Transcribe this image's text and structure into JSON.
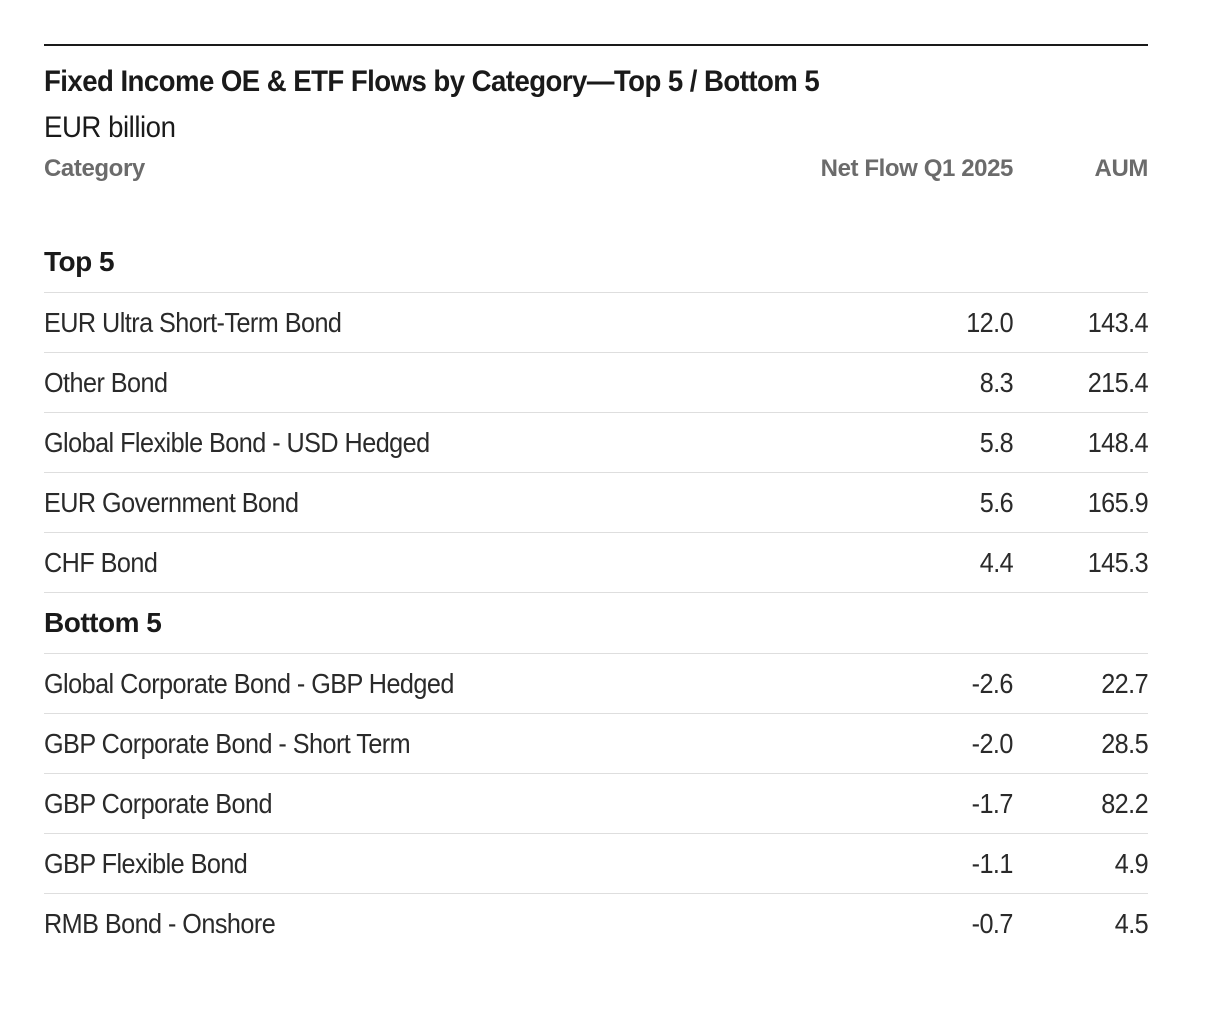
{
  "chart_data": {
    "type": "table",
    "title": "Fixed Income OE & ETF Flows by Category—Top 5 / Bottom 5",
    "subtitle": "EUR billion",
    "columns": [
      "Category",
      "Net Flow Q1 2025",
      "AUM"
    ],
    "groups": [
      {
        "name": "Top 5",
        "rows": [
          {
            "category": "EUR Ultra Short-Term Bond",
            "net_flow": "12.0",
            "aum": "143.4"
          },
          {
            "category": "Other Bond",
            "net_flow": "8.3",
            "aum": "215.4"
          },
          {
            "category": "Global Flexible Bond - USD Hedged",
            "net_flow": "5.8",
            "aum": "148.4"
          },
          {
            "category": "EUR Government Bond",
            "net_flow": "5.6",
            "aum": "165.9"
          },
          {
            "category": "CHF Bond",
            "net_flow": "4.4",
            "aum": "145.3"
          }
        ]
      },
      {
        "name": "Bottom 5",
        "rows": [
          {
            "category": "Global Corporate Bond - GBP Hedged",
            "net_flow": "-2.6",
            "aum": "22.7"
          },
          {
            "category": "GBP Corporate Bond - Short Term",
            "net_flow": "-2.0",
            "aum": "28.5"
          },
          {
            "category": "GBP Corporate Bond",
            "net_flow": "-1.7",
            "aum": "82.2"
          },
          {
            "category": "GBP Flexible Bond",
            "net_flow": "-1.1",
            "aum": "4.9"
          },
          {
            "category": "RMB Bond - Onshore",
            "net_flow": "-0.7",
            "aum": "4.5"
          }
        ]
      }
    ]
  }
}
